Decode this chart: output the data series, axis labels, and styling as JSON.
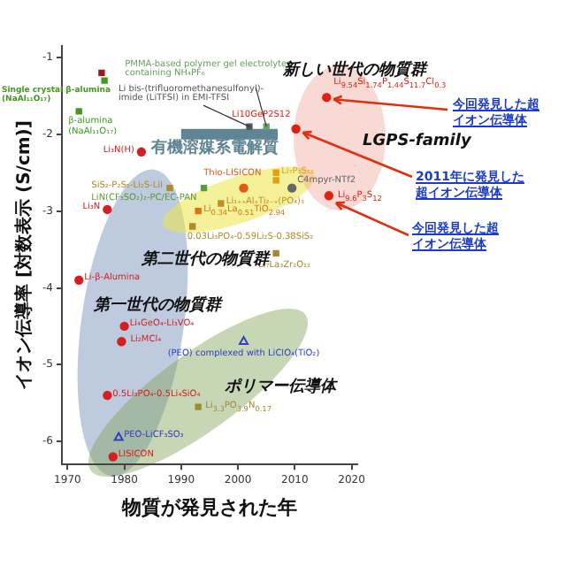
{
  "chart_data": {
    "type": "scatter",
    "xlabel": "物質が発見された年",
    "ylabel": "イオン伝導率 [対数表示 (S/cm)]",
    "xlim": [
      1969,
      2021
    ],
    "xticks": [
      1970,
      1980,
      1990,
      2000,
      2010,
      2020
    ],
    "ylim": [
      -6.3,
      -0.85
    ],
    "yticks": [
      -1,
      -2,
      -3,
      -4,
      -5,
      -6
    ],
    "grid": false,
    "legend": false,
    "series": [
      {
        "color": "#a01818",
        "x": [
          1976
        ],
        "values": [
          -1.2
        ],
        "marker": "square"
      },
      {
        "name": "Single crystal β-alumina\n(NaAl₁₁O₁₇)",
        "color": "#3f9a1f",
        "x": [
          1976.5
        ],
        "values": [
          -1.3
        ],
        "marker": "square"
      },
      {
        "name": "β-alumina\n(NaAl₁₁O₁₇)",
        "color": "#3f9a1f",
        "x": [
          1972
        ],
        "values": [
          -1.7
        ],
        "marker": "square"
      },
      {
        "name": "Li bis-(trifluoromethanesulfonyl)-\nimide (LiTFSI) in EMI-TFSI",
        "color": "#555555",
        "x": [
          2002
        ],
        "values": [
          -1.9
        ],
        "marker": "square"
      },
      {
        "name": "PMMA-based polymer gel electrolytes\ncontaining NH₄PF₆",
        "color": "#6aa060",
        "x": [
          2005
        ],
        "values": [
          -1.9
        ],
        "marker": "square"
      },
      {
        "name": "有機溶媒系電解質",
        "type": "line",
        "color": "#5f8595",
        "x": [
          1990,
          2007
        ],
        "values": [
          -2,
          -2
        ]
      },
      {
        "name": "Li₃N(H)",
        "color": "#d42020",
        "x": [
          1983
        ],
        "values": [
          -2.23
        ],
        "marker": "circle"
      },
      {
        "name": "SiS₂-P₂S₅-Li₂S-LiI",
        "color": "#b08a2a",
        "x": [
          1988
        ],
        "values": [
          -2.7
        ],
        "marker": "square"
      },
      {
        "name": "LiN(CF₃SO₂)₂-PC/EC-PAN",
        "color": "#5a9a3a",
        "x": [
          1994
        ],
        "values": [
          -2.7
        ],
        "marker": "square"
      },
      {
        "name": "Li₃N",
        "color": "#d42020",
        "x": [
          1977
        ],
        "values": [
          -2.98
        ],
        "marker": "circle"
      },
      {
        "name": "Thio-LISICON",
        "color": "#e05a10",
        "x": [
          2001
        ],
        "values": [
          -2.7
        ],
        "marker": "circle"
      },
      {
        "name": "Li₇P₃S₁₁",
        "color": "#e0a010",
        "x": [
          2006.7
        ],
        "values": [
          -2.5
        ],
        "marker": "square"
      },
      {
        "color": "#e0a010",
        "x": [
          2006.7
        ],
        "values": [
          -2.6
        ],
        "marker": "square"
      },
      {
        "name": "Li₁₊ₓAlₓTi₂₋ₓ(PO₄)₃",
        "color": "#c09020",
        "x": [
          1997
        ],
        "values": [
          -2.9
        ],
        "marker": "square"
      },
      {
        "name": "Li$_{0.34}$La$_{0.51}$TiO$_{2.94}$",
        "color": "#e07010",
        "x": [
          1993
        ],
        "values": [
          -3.0
        ],
        "marker": "square"
      },
      {
        "name": "0.03Li₃PO₄-0.59Li₂S-0.38SiS₂",
        "color": "#b08a2a",
        "x": [
          1992
        ],
        "values": [
          -3.2
        ],
        "marker": "square"
      },
      {
        "name": "Li₇La₃Zr₂O₁₂",
        "color": "#a08a30",
        "x": [
          2006.7
        ],
        "values": [
          -3.55
        ],
        "marker": "square"
      },
      {
        "name": "Li$_{9.54}$Si$_{1.74}$P$_{1.44}$S$_{11.7}$Cl$_{0.3}$",
        "color": "#e02010",
        "x": [
          2015.6
        ],
        "values": [
          -1.52
        ],
        "marker": "circle"
      },
      {
        "name": "Li10GeP2S12",
        "color": "#e02010",
        "x": [
          2010.2
        ],
        "values": [
          -1.93
        ],
        "marker": "circle"
      },
      {
        "name": "C4mpyr-NTf2",
        "color": "#666666",
        "x": [
          2009.5
        ],
        "values": [
          -2.7
        ],
        "marker": "circle"
      },
      {
        "name": "Li$_{9.6}$P$_{3}$S$_{12}$",
        "color": "#e02010",
        "x": [
          2016
        ],
        "values": [
          -2.8
        ],
        "marker": "circle"
      },
      {
        "name": "Li-β-Alumina",
        "color": "#d42020",
        "x": [
          1972
        ],
        "values": [
          -3.9
        ],
        "marker": "circle"
      },
      {
        "name": "Li₄GeO₄-Li₃VO₄",
        "color": "#d42020",
        "x": [
          1980
        ],
        "values": [
          -4.5
        ],
        "marker": "circle"
      },
      {
        "name": "Li₂MCl₄",
        "color": "#d42020",
        "x": [
          1979.5
        ],
        "values": [
          -4.7
        ],
        "marker": "circle"
      },
      {
        "name": "0.5Li₃PO₄-0.5Li₄SiO₄",
        "color": "#d42020",
        "x": [
          1977
        ],
        "values": [
          -5.4
        ],
        "marker": "circle"
      },
      {
        "name": "PEO-LiCF₃SO₃",
        "color": "#3040c0",
        "x": [
          1979
        ],
        "values": [
          -5.95
        ],
        "marker": "triangle"
      },
      {
        "name": "LISICON",
        "color": "#d42020",
        "x": [
          1978
        ],
        "values": [
          -6.2
        ],
        "marker": "circle"
      },
      {
        "name": "(PEO) complexed with LiClO₄(TiO₂)",
        "color": "#3040c0",
        "x": [
          2001
        ],
        "values": [
          -4.7
        ],
        "marker": "triangle"
      },
      {
        "name": "Li$_{3.3}$PO$_{3.9}$N$_{0.17}$",
        "color": "#a08a30",
        "x": [
          1993
        ],
        "values": [
          -5.55
        ],
        "marker": "square"
      }
    ],
    "annotations": [
      "新しい世代の物質群",
      "LGPS-family",
      "第二世代の物質群",
      "第一世代の物質群",
      "ポリマー伝導体",
      {
        "text": "今回発見した超イオン伝導体",
        "x": 2015.6,
        "y": -1.52
      },
      {
        "text": "2011年に発見した超イオン伝導体",
        "x": 2010.2,
        "y": -1.93
      },
      {
        "text": "今回発見した超イオン伝導体",
        "x": 2016,
        "y": -2.8
      }
    ]
  }
}
